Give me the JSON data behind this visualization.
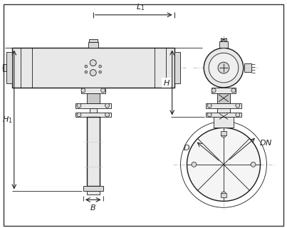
{
  "bg_color": "#ffffff",
  "lc": "#1a1a1a",
  "dc": "#222222",
  "gray1": "#e8e8e8",
  "gray2": "#d8d8d8",
  "gray3": "#c8c8c8",
  "tlw": 0.6,
  "mlw": 1.0,
  "thklw": 1.4
}
